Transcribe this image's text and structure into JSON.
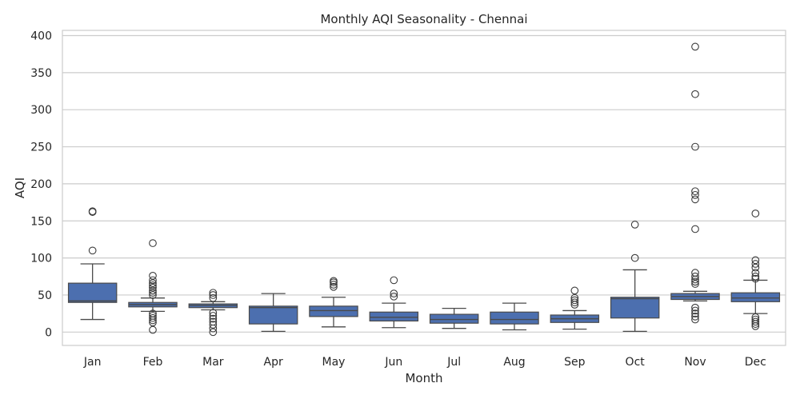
{
  "chart_data": {
    "type": "box",
    "title": "Monthly AQI Seasonality - Chennai",
    "xlabel": "Month",
    "ylabel": "AQI",
    "ylim": [
      -18,
      407
    ],
    "yticks": [
      0,
      50,
      100,
      150,
      200,
      250,
      300,
      350,
      400
    ],
    "grid": true,
    "box_color": "#4c6faf",
    "categories": [
      "Jan",
      "Feb",
      "Mar",
      "Apr",
      "May",
      "Jun",
      "Jul",
      "Aug",
      "Sep",
      "Oct",
      "Nov",
      "Dec"
    ],
    "boxes": [
      {
        "month": "Jan",
        "whislo": 17,
        "q1": 40,
        "med": 42,
        "q3": 66,
        "whishi": 92,
        "fliers": [
          110,
          162,
          163
        ]
      },
      {
        "month": "Feb",
        "whislo": 28,
        "q1": 34,
        "med": 37,
        "q3": 40,
        "whishi": 46,
        "fliers": [
          3,
          13,
          16,
          19,
          22,
          25,
          50,
          53,
          56,
          60,
          63,
          66,
          70,
          76,
          120
        ]
      },
      {
        "month": "Mar",
        "whislo": 30,
        "q1": 33,
        "med": 36,
        "q3": 38,
        "whishi": 41,
        "fliers": [
          0,
          5,
          10,
          14,
          18,
          22,
          26,
          46,
          50,
          53
        ]
      },
      {
        "month": "Apr",
        "whislo": 1,
        "q1": 11,
        "med": 33,
        "q3": 35,
        "whishi": 52,
        "fliers": []
      },
      {
        "month": "May",
        "whislo": 7,
        "q1": 21,
        "med": 29,
        "q3": 35,
        "whishi": 47,
        "fliers": [
          61,
          64,
          67,
          69
        ]
      },
      {
        "month": "Jun",
        "whislo": 6,
        "q1": 15,
        "med": 20,
        "q3": 27,
        "whishi": 39,
        "fliers": [
          48,
          52,
          70
        ]
      },
      {
        "month": "Jul",
        "whislo": 5,
        "q1": 12,
        "med": 17,
        "q3": 24,
        "whishi": 32,
        "fliers": []
      },
      {
        "month": "Aug",
        "whislo": 3,
        "q1": 11,
        "med": 17,
        "q3": 27,
        "whishi": 39,
        "fliers": []
      },
      {
        "month": "Sep",
        "whislo": 4,
        "q1": 13,
        "med": 18,
        "q3": 23,
        "whishi": 29,
        "fliers": [
          37,
          40,
          43,
          46,
          56
        ]
      },
      {
        "month": "Oct",
        "whislo": 1,
        "q1": 19,
        "med": 45,
        "q3": 47,
        "whishi": 84,
        "fliers": [
          100,
          145
        ]
      },
      {
        "month": "Nov",
        "whislo": 42,
        "q1": 44,
        "med": 48,
        "q3": 52,
        "whishi": 55,
        "fliers": [
          17,
          21,
          25,
          29,
          33,
          65,
          68,
          71,
          75,
          80,
          139,
          179,
          185,
          190,
          250,
          321,
          385
        ]
      },
      {
        "month": "Dec",
        "whislo": 25,
        "q1": 41,
        "med": 46,
        "q3": 53,
        "whishi": 70,
        "fliers": [
          8,
          11,
          14,
          17,
          20,
          72,
          75,
          80,
          87,
          92,
          97,
          160
        ]
      }
    ]
  }
}
